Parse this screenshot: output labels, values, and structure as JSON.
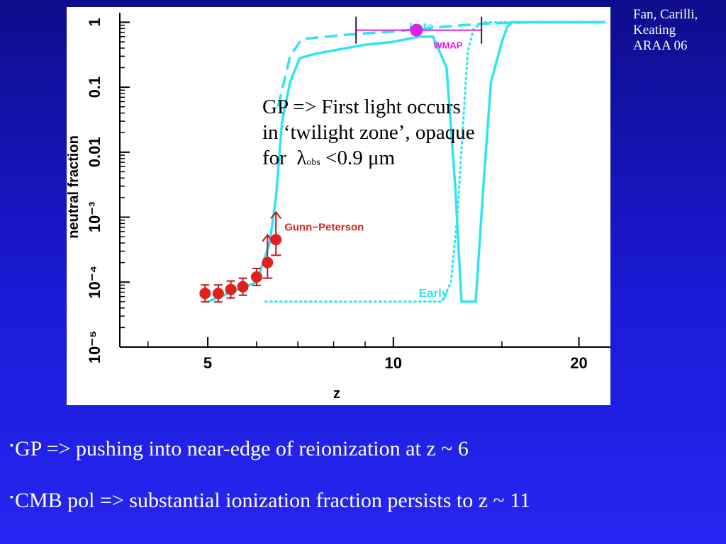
{
  "credit": "Fan, Carilli,\nKeating\nARAA 06",
  "overlay_note": {
    "line1": "GP => First light occurs",
    "line2": "in ‘twilight zone’, opaque",
    "line3_prefix": "for",
    "lambda": "λ",
    "subscript": "obs",
    "line3_suffix": "<0.9 μm"
  },
  "bullets": [
    {
      "mark": "▪",
      "text": "GP => pushing into near-edge of reionization at z ~ 6"
    },
    {
      "mark": "▪",
      "text": "CMB pol => substantial ionization fraction persists to z ~ 11"
    }
  ],
  "colors": {
    "cyan": "#2fe4f2",
    "red": "#e0201c",
    "magenta": "#e020e0"
  },
  "chart_data": {
    "type": "line",
    "xlabel": "z",
    "ylabel": "neutral fraction",
    "x_scale": "log",
    "y_scale": "log",
    "xlim": [
      3.6,
      22.5
    ],
    "ylim": [
      1e-05,
      1.4
    ],
    "x_ticks": [
      {
        "value": 5,
        "label": "5"
      },
      {
        "value": 10,
        "label": "10"
      },
      {
        "value": 20,
        "label": "20"
      }
    ],
    "x_minor_ticks": [
      4,
      6,
      7,
      8,
      9,
      15
    ],
    "y_ticks": [
      {
        "value": 1,
        "label": "1"
      },
      {
        "value": 0.1,
        "label": "0.1"
      },
      {
        "value": 0.01,
        "label": "0.01"
      },
      {
        "value": 0.001,
        "label": "10⁻³"
      },
      {
        "value": 0.0001,
        "label": "10⁻⁴"
      },
      {
        "value": 1e-05,
        "label": "10⁻⁵"
      }
    ],
    "series": [
      {
        "name": "Late",
        "style": "dashed",
        "points": [
          [
            6.5,
            0.05
          ],
          [
            6.8,
            0.3
          ],
          [
            7.1,
            0.55
          ],
          [
            7.5,
            0.58
          ],
          [
            8.5,
            0.65
          ],
          [
            10,
            0.72
          ],
          [
            12,
            0.85
          ],
          [
            14,
            0.95
          ],
          [
            17,
            1.0
          ],
          [
            22,
            1.0
          ]
        ]
      },
      {
        "name": "",
        "style": "solid",
        "points": [
          [
            5,
            5e-05
          ],
          [
            6.0,
            0.0001
          ],
          [
            6.3,
            0.0004
          ],
          [
            6.45,
            0.002
          ],
          [
            6.6,
            0.03
          ],
          [
            6.8,
            0.12
          ],
          [
            7.05,
            0.28
          ],
          [
            7.5,
            0.33
          ],
          [
            9,
            0.45
          ],
          [
            10,
            0.5
          ],
          [
            11,
            0.6
          ],
          [
            11.6,
            0.6
          ],
          [
            12.2,
            0.2
          ],
          [
            12.6,
            0.003
          ],
          [
            12.9,
            5e-05
          ],
          [
            13.6,
            5e-05
          ],
          [
            14.0,
            0.003
          ],
          [
            14.4,
            0.12
          ],
          [
            15.0,
            0.5
          ],
          [
            15.3,
            0.85
          ],
          [
            15.6,
            1.0
          ],
          [
            22,
            1.0
          ]
        ]
      },
      {
        "name": "Early",
        "style": "dotted",
        "points": [
          [
            6.2,
            5e-05
          ],
          [
            12.0,
            5e-05
          ],
          [
            12.4,
            0.0001
          ],
          [
            12.7,
            0.001
          ],
          [
            12.95,
            0.02
          ],
          [
            13.2,
            0.35
          ],
          [
            13.5,
            0.8
          ],
          [
            14.0,
            1.0
          ],
          [
            22,
            1.0
          ]
        ]
      }
    ],
    "gunn_peterson": {
      "label": "Gunn−Peterson",
      "points": [
        {
          "z": 4.95,
          "y": 6.7e-05,
          "lower_limit": false
        },
        {
          "z": 5.2,
          "y": 6.7e-05,
          "lower_limit": false
        },
        {
          "z": 5.45,
          "y": 7.7e-05,
          "lower_limit": false
        },
        {
          "z": 5.7,
          "y": 8.5e-05,
          "lower_limit": false
        },
        {
          "z": 6.0,
          "y": 0.00012,
          "lower_limit": false
        },
        {
          "z": 6.25,
          "y": 0.0002,
          "lower_limit": true
        },
        {
          "z": 6.45,
          "y": 0.00045,
          "lower_limit": true
        }
      ]
    },
    "wmap": {
      "label": "WMAP",
      "z": 10.9,
      "y": 0.7,
      "z_range": [
        8.7,
        13.9
      ]
    },
    "annotations": [
      {
        "text": "Late",
        "z": 10.6,
        "y": 1.0
      },
      {
        "text": "Early",
        "z": 11.0,
        "y": 6.8e-05
      }
    ]
  }
}
